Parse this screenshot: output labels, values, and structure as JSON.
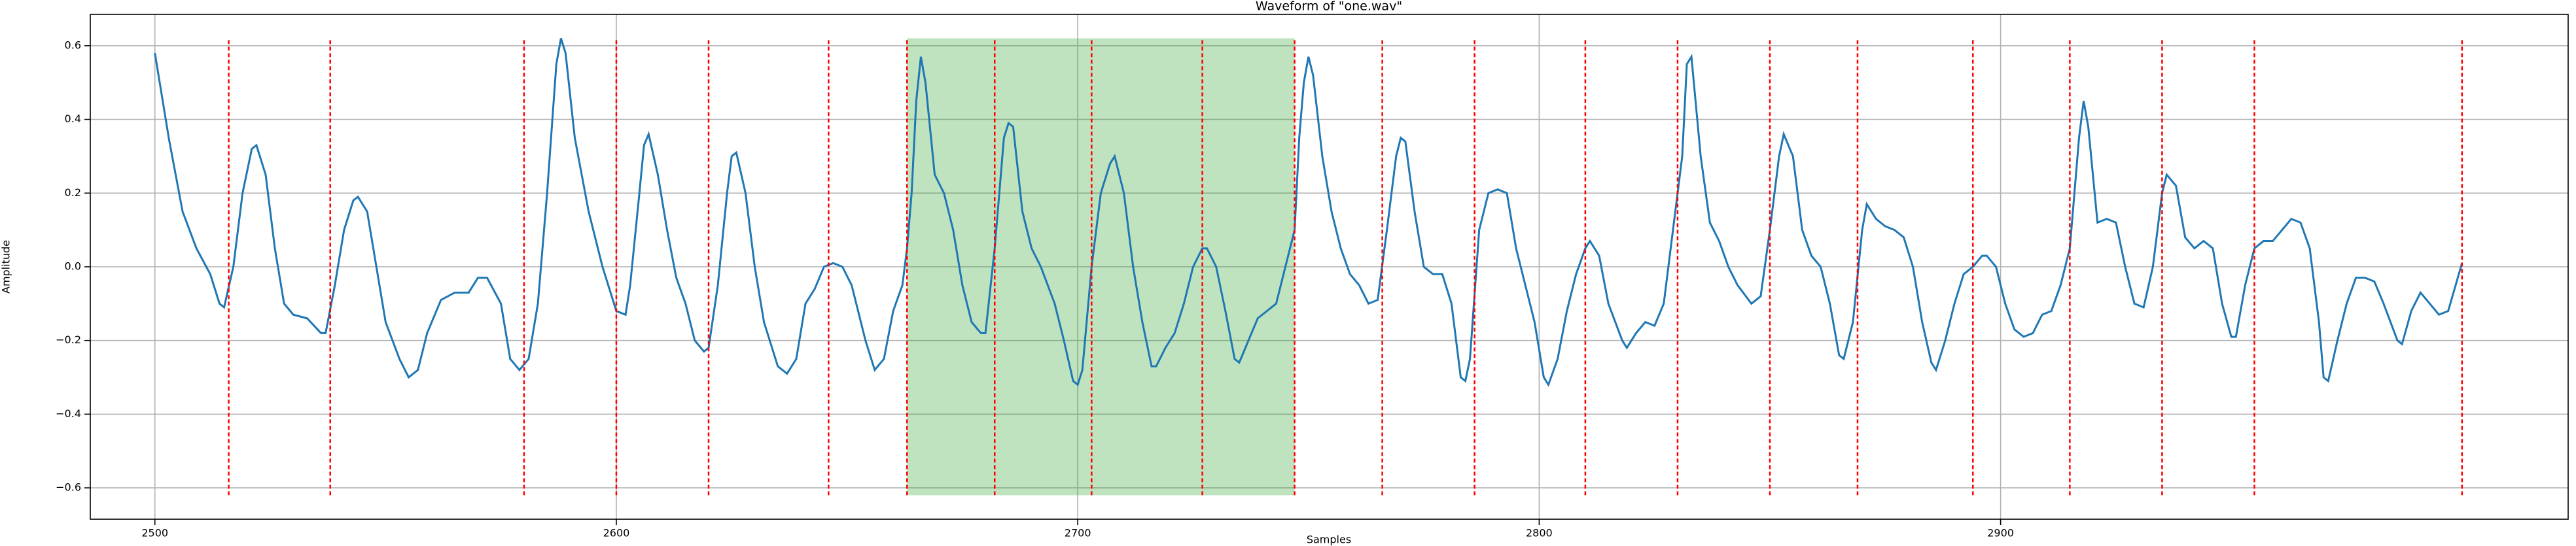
{
  "chart_data": {
    "type": "line",
    "title": "Waveform of \"one.wav\"",
    "x_label": "Samples",
    "y_label": "Amplitude",
    "color": "#1f77b4",
    "grid": true,
    "xlim": [
      2486,
      3023
    ],
    "ylim": [
      -0.685,
      0.685
    ],
    "xticks": [
      2500,
      2600,
      2700,
      2800,
      2900
    ],
    "yticks": [
      {
        "value": -0.6,
        "label": "−0.6"
      },
      {
        "value": -0.4,
        "label": "−0.4"
      },
      {
        "value": -0.2,
        "label": "−0.2"
      },
      {
        "value": 0,
        "label": "0.0"
      },
      0.2,
      0.4,
      0.6
    ],
    "vlines": [
      2516,
      2538,
      2580,
      2600,
      2620,
      2646,
      2663,
      2682,
      2703,
      2727,
      2747,
      2766,
      2786,
      2810,
      2830,
      2850,
      2869,
      2894,
      2915,
      2935,
      2955,
      3000
    ],
    "vline_color": "#ff0000",
    "vline_range": [
      -0.62,
      0.62
    ],
    "span": [
      2663,
      2747
    ],
    "span_color": "#2ca02c",
    "x": [
      2500,
      2503,
      2506,
      2509,
      2512,
      2514,
      2515,
      2517,
      2519,
      2521,
      2522,
      2524,
      2526,
      2528,
      2530,
      2533,
      2536,
      2537,
      2539,
      2541,
      2543,
      2544,
      2546,
      2548,
      2550,
      2553,
      2555,
      2557,
      2559,
      2562,
      2565,
      2568,
      2570,
      2572,
      2575,
      2577,
      2579,
      2581,
      2583,
      2585,
      2587,
      2588,
      2589,
      2591,
      2594,
      2597,
      2600,
      2602,
      2603,
      2605,
      2606,
      2607,
      2609,
      2611,
      2613,
      2615,
      2617,
      2619,
      2620,
      2622,
      2624,
      2625,
      2626,
      2628,
      2630,
      2632,
      2635,
      2637,
      2639,
      2641,
      2643,
      2645,
      2647,
      2649,
      2651,
      2654,
      2656,
      2658,
      2660,
      2662,
      2663,
      2664,
      2665,
      2666,
      2667,
      2669,
      2671,
      2673,
      2675,
      2677,
      2679,
      2680,
      2682,
      2684,
      2685,
      2686,
      2688,
      2690,
      2692,
      2695,
      2697,
      2699,
      2700,
      2701,
      2703,
      2705,
      2707,
      2708,
      2710,
      2712,
      2714,
      2716,
      2717,
      2719,
      2721,
      2723,
      2725,
      2727,
      2728,
      2730,
      2732,
      2734,
      2735,
      2737,
      2739,
      2741,
      2743,
      2745,
      2747,
      2748,
      2749,
      2750,
      2751,
      2753,
      2755,
      2757,
      2759,
      2761,
      2763,
      2765,
      2767,
      2769,
      2770,
      2771,
      2773,
      2775,
      2777,
      2779,
      2781,
      2783,
      2784,
      2785,
      2787,
      2789,
      2791,
      2793,
      2795,
      2797,
      2799,
      2801,
      2802,
      2804,
      2806,
      2808,
      2810,
      2811,
      2813,
      2815,
      2818,
      2819,
      2821,
      2823,
      2825,
      2827,
      2829,
      2831,
      2832,
      2833,
      2835,
      2837,
      2839,
      2841,
      2843,
      2846,
      2848,
      2850,
      2852,
      2853,
      2855,
      2857,
      2859,
      2861,
      2863,
      2865,
      2866,
      2868,
      2870,
      2871,
      2873,
      2875,
      2877,
      2879,
      2881,
      2883,
      2885,
      2886,
      2888,
      2890,
      2892,
      2894,
      2896,
      2897,
      2899,
      2901,
      2903,
      2905,
      2907,
      2909,
      2911,
      2913,
      2915,
      2917,
      2918,
      2919,
      2921,
      2923,
      2925,
      2927,
      2929,
      2931,
      2933,
      2935,
      2936,
      2938,
      2940,
      2942,
      2944,
      2946,
      2948,
      2950,
      2951,
      2953,
      2955,
      2957,
      2959,
      2961,
      2963,
      2965,
      2967,
      2969,
      2970,
      2971,
      2973,
      2975,
      2977,
      2979,
      2981,
      2983,
      2986,
      2987,
      2989,
      2991,
      2993,
      2995,
      2997,
      3000
    ],
    "values": [
      0.58,
      0.35,
      0.15,
      0.05,
      -0.02,
      -0.1,
      -0.11,
      0.0,
      0.2,
      0.32,
      0.33,
      0.25,
      0.05,
      -0.1,
      -0.13,
      -0.14,
      -0.18,
      -0.18,
      -0.05,
      0.1,
      0.18,
      0.19,
      0.15,
      0.0,
      -0.15,
      -0.25,
      -0.3,
      -0.28,
      -0.18,
      -0.09,
      -0.07,
      -0.07,
      -0.03,
      -0.03,
      -0.1,
      -0.25,
      -0.28,
      -0.25,
      -0.1,
      0.2,
      0.55,
      0.62,
      0.58,
      0.35,
      0.15,
      0.0,
      -0.12,
      -0.13,
      -0.05,
      0.2,
      0.33,
      0.36,
      0.25,
      0.1,
      -0.03,
      -0.1,
      -0.2,
      -0.23,
      -0.22,
      -0.05,
      0.2,
      0.3,
      0.31,
      0.2,
      0.0,
      -0.15,
      -0.27,
      -0.29,
      -0.25,
      -0.1,
      -0.06,
      0.0,
      0.01,
      0.0,
      -0.05,
      -0.2,
      -0.28,
      -0.25,
      -0.12,
      -0.05,
      0.05,
      0.2,
      0.45,
      0.57,
      0.5,
      0.25,
      0.2,
      0.1,
      -0.05,
      -0.15,
      -0.18,
      -0.18,
      0.05,
      0.35,
      0.39,
      0.38,
      0.15,
      0.05,
      0.0,
      -0.1,
      -0.2,
      -0.31,
      -0.32,
      -0.28,
      0.0,
      0.2,
      0.28,
      0.3,
      0.2,
      0.0,
      -0.15,
      -0.27,
      -0.27,
      -0.22,
      -0.18,
      -0.1,
      0.0,
      0.05,
      0.05,
      0.0,
      -0.12,
      -0.25,
      -0.26,
      -0.2,
      -0.14,
      -0.12,
      -0.1,
      0.0,
      0.1,
      0.35,
      0.5,
      0.57,
      0.52,
      0.3,
      0.15,
      0.05,
      -0.02,
      -0.05,
      -0.1,
      -0.09,
      0.1,
      0.3,
      0.35,
      0.34,
      0.15,
      0.0,
      -0.02,
      -0.02,
      -0.1,
      -0.3,
      -0.31,
      -0.25,
      0.1,
      0.2,
      0.21,
      0.2,
      0.05,
      -0.05,
      -0.15,
      -0.3,
      -0.32,
      -0.25,
      -0.12,
      -0.02,
      0.05,
      0.07,
      0.03,
      -0.1,
      -0.2,
      -0.22,
      -0.18,
      -0.15,
      -0.16,
      -0.1,
      0.1,
      0.3,
      0.55,
      0.57,
      0.3,
      0.12,
      0.07,
      0.0,
      -0.05,
      -0.1,
      -0.08,
      0.1,
      0.3,
      0.36,
      0.3,
      0.1,
      0.03,
      0.0,
      -0.1,
      -0.24,
      -0.25,
      -0.15,
      0.1,
      0.17,
      0.13,
      0.11,
      0.1,
      0.08,
      0.0,
      -0.15,
      -0.26,
      -0.28,
      -0.2,
      -0.1,
      -0.02,
      0.0,
      0.03,
      0.03,
      0.0,
      -0.1,
      -0.17,
      -0.19,
      -0.18,
      -0.13,
      -0.12,
      -0.05,
      0.05,
      0.35,
      0.45,
      0.38,
      0.12,
      0.13,
      0.12,
      0.0,
      -0.1,
      -0.11,
      0.0,
      0.2,
      0.25,
      0.22,
      0.08,
      0.05,
      0.07,
      0.05,
      -0.1,
      -0.19,
      -0.19,
      -0.05,
      0.05,
      0.07,
      0.07,
      0.1,
      0.13,
      0.12,
      0.05,
      -0.15,
      -0.3,
      -0.31,
      -0.2,
      -0.1,
      -0.03,
      -0.03,
      -0.04,
      -0.1,
      -0.2,
      -0.21,
      -0.12,
      -0.07,
      -0.1,
      -0.13,
      -0.12,
      0.01
    ]
  }
}
